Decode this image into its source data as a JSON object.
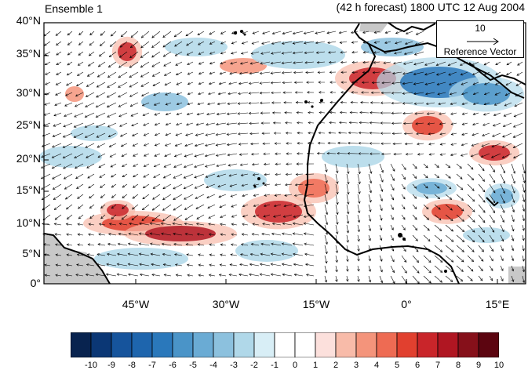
{
  "title_left": "Ensemble 1",
  "title_right": "(42 h forecast) 1800 UTC 12 Aug 2004",
  "reference_vector": {
    "magnitude": "10",
    "label": "Reference Vector"
  },
  "lat_labels": [
    "40°N",
    "35°N",
    "30°N",
    "25°N",
    "20°N",
    "15°N",
    "10°N",
    "5°N",
    "0°"
  ],
  "lon_labels": [
    "45°W",
    "30°W",
    "15°W",
    "0°",
    "15°E"
  ],
  "colorbar": {
    "labels": [
      "-10",
      "-9",
      "-8",
      "-7",
      "-6",
      "-5",
      "-4",
      "-3",
      "-2",
      "-1",
      "0",
      "1",
      "2",
      "3",
      "4",
      "5",
      "6",
      "7",
      "8",
      "9",
      "10"
    ],
    "colors": [
      "#08234f",
      "#0b3775",
      "#16549c",
      "#1e65ad",
      "#2a78bb",
      "#4a94c8",
      "#6aabd4",
      "#8cc1de",
      "#b0d8e9",
      "#d8eef6",
      "#ffffff",
      "#ffffff",
      "#fce0dc",
      "#f8bba9",
      "#f4947b",
      "#ee6b53",
      "#e1402f",
      "#c9252a",
      "#b01622",
      "#86101a",
      "#5c0510"
    ]
  },
  "map_colors": {
    "land": "#c8c8c8",
    "coast": "#000000",
    "ocean": "#ffffff"
  }
}
